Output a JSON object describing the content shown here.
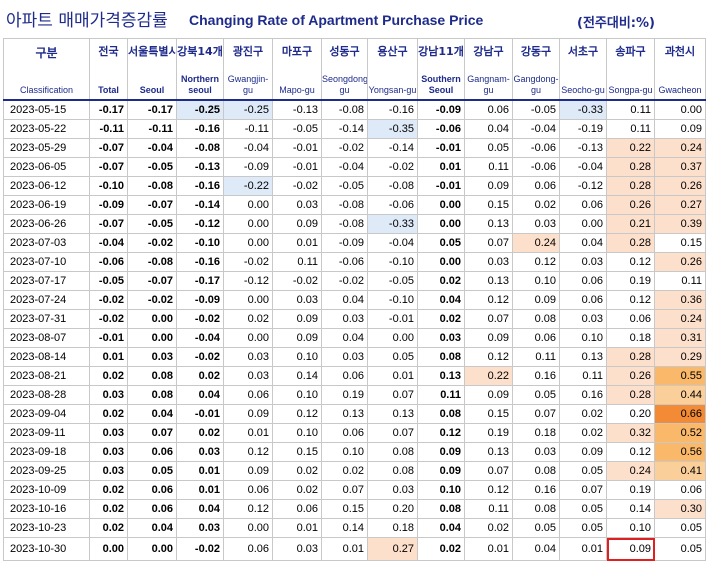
{
  "title_ko": "아파트 매매가격증감률",
  "title_en": "Changing Rate of Apartment Purchase Price",
  "unit": "(전주대비:%)",
  "columns": [
    {
      "ko": "구분",
      "en": "Classification"
    },
    {
      "ko": "전국",
      "en": "Total"
    },
    {
      "ko": "서울특별시",
      "en": "Seoul"
    },
    {
      "ko": "강북14개",
      "en": "Northern seoul"
    },
    {
      "ko": "광진구",
      "en": "Gwangjin-gu"
    },
    {
      "ko": "마포구",
      "en": "Mapo-gu"
    },
    {
      "ko": "성동구",
      "en": "Seongdong-gu"
    },
    {
      "ko": "용산구",
      "en": "Yongsan-gu"
    },
    {
      "ko": "강남11개",
      "en": "Southern Seoul"
    },
    {
      "ko": "강남구",
      "en": "Gangnam-gu"
    },
    {
      "ko": "강동구",
      "en": "Gangdong-gu"
    },
    {
      "ko": "서초구",
      "en": "Seocho-gu"
    },
    {
      "ko": "송파구",
      "en": "Songpa-gu"
    },
    {
      "ko": "과천시",
      "en": "Gwacheon"
    }
  ],
  "rows": [
    [
      "2023-05-15",
      "-0.17",
      "-0.17",
      "-0.25",
      "-0.25",
      "-0.13",
      "-0.08",
      "-0.16",
      "-0.09",
      "0.06",
      "-0.05",
      "-0.33",
      "0.11",
      "0.00"
    ],
    [
      "2023-05-22",
      "-0.11",
      "-0.11",
      "-0.16",
      "-0.11",
      "-0.05",
      "-0.14",
      "-0.35",
      "-0.06",
      "0.04",
      "-0.04",
      "-0.19",
      "0.11",
      "0.09"
    ],
    [
      "2023-05-29",
      "-0.07",
      "-0.04",
      "-0.08",
      "-0.04",
      "-0.01",
      "-0.02",
      "-0.14",
      "-0.01",
      "0.05",
      "-0.06",
      "-0.13",
      "0.22",
      "0.24"
    ],
    [
      "2023-06-05",
      "-0.07",
      "-0.05",
      "-0.13",
      "-0.09",
      "-0.01",
      "-0.04",
      "-0.02",
      "0.01",
      "0.11",
      "-0.06",
      "-0.04",
      "0.28",
      "0.37"
    ],
    [
      "2023-06-12",
      "-0.10",
      "-0.08",
      "-0.16",
      "-0.22",
      "-0.02",
      "-0.05",
      "-0.08",
      "-0.01",
      "0.09",
      "0.06",
      "-0.12",
      "0.28",
      "0.26"
    ],
    [
      "2023-06-19",
      "-0.09",
      "-0.07",
      "-0.14",
      "0.00",
      "0.03",
      "-0.08",
      "-0.06",
      "0.00",
      "0.15",
      "0.02",
      "0.06",
      "0.26",
      "0.27"
    ],
    [
      "2023-06-26",
      "-0.07",
      "-0.05",
      "-0.12",
      "0.00",
      "0.09",
      "-0.08",
      "-0.33",
      "0.00",
      "0.13",
      "0.03",
      "0.00",
      "0.21",
      "0.39"
    ],
    [
      "2023-07-03",
      "-0.04",
      "-0.02",
      "-0.10",
      "0.00",
      "0.01",
      "-0.09",
      "-0.04",
      "0.05",
      "0.07",
      "0.24",
      "0.04",
      "0.28",
      "0.15"
    ],
    [
      "2023-07-10",
      "-0.06",
      "-0.08",
      "-0.16",
      "-0.02",
      "0.11",
      "-0.06",
      "-0.10",
      "0.00",
      "0.03",
      "0.12",
      "0.03",
      "0.12",
      "0.26"
    ],
    [
      "2023-07-17",
      "-0.05",
      "-0.07",
      "-0.17",
      "-0.12",
      "-0.02",
      "-0.02",
      "-0.05",
      "0.02",
      "0.13",
      "0.10",
      "0.06",
      "0.19",
      "0.11"
    ],
    [
      "2023-07-24",
      "-0.02",
      "-0.02",
      "-0.09",
      "0.00",
      "0.03",
      "0.04",
      "-0.10",
      "0.04",
      "0.12",
      "0.09",
      "0.06",
      "0.12",
      "0.36"
    ],
    [
      "2023-07-31",
      "-0.02",
      "0.00",
      "-0.02",
      "0.02",
      "0.09",
      "0.03",
      "-0.01",
      "0.02",
      "0.07",
      "0.08",
      "0.03",
      "0.06",
      "0.24"
    ],
    [
      "2023-08-07",
      "-0.01",
      "0.00",
      "-0.04",
      "0.00",
      "0.09",
      "0.04",
      "0.00",
      "0.03",
      "0.09",
      "0.06",
      "0.10",
      "0.18",
      "0.31"
    ],
    [
      "2023-08-14",
      "0.01",
      "0.03",
      "-0.02",
      "0.03",
      "0.10",
      "0.03",
      "0.05",
      "0.08",
      "0.12",
      "0.11",
      "0.13",
      "0.28",
      "0.29"
    ],
    [
      "2023-08-21",
      "0.02",
      "0.08",
      "0.02",
      "0.03",
      "0.14",
      "0.06",
      "0.01",
      "0.13",
      "0.22",
      "0.16",
      "0.11",
      "0.26",
      "0.55"
    ],
    [
      "2023-08-28",
      "0.03",
      "0.08",
      "0.04",
      "0.06",
      "0.10",
      "0.19",
      "0.07",
      "0.11",
      "0.09",
      "0.05",
      "0.16",
      "0.28",
      "0.44"
    ],
    [
      "2023-09-04",
      "0.02",
      "0.04",
      "-0.01",
      "0.09",
      "0.12",
      "0.13",
      "0.13",
      "0.08",
      "0.15",
      "0.07",
      "0.02",
      "0.20",
      "0.66"
    ],
    [
      "2023-09-11",
      "0.03",
      "0.07",
      "0.02",
      "0.01",
      "0.10",
      "0.06",
      "0.07",
      "0.12",
      "0.19",
      "0.18",
      "0.02",
      "0.32",
      "0.52"
    ],
    [
      "2023-09-18",
      "0.03",
      "0.06",
      "0.03",
      "0.12",
      "0.15",
      "0.10",
      "0.08",
      "0.09",
      "0.13",
      "0.03",
      "0.09",
      "0.12",
      "0.56"
    ],
    [
      "2023-09-25",
      "0.03",
      "0.05",
      "0.01",
      "0.09",
      "0.02",
      "0.02",
      "0.08",
      "0.09",
      "0.07",
      "0.08",
      "0.05",
      "0.24",
      "0.41"
    ],
    [
      "2023-10-09",
      "0.02",
      "0.06",
      "0.01",
      "0.06",
      "0.02",
      "0.07",
      "0.03",
      "0.10",
      "0.12",
      "0.16",
      "0.07",
      "0.19",
      "0.06"
    ],
    [
      "2023-10-16",
      "0.02",
      "0.06",
      "0.04",
      "0.12",
      "0.06",
      "0.15",
      "0.20",
      "0.08",
      "0.11",
      "0.08",
      "0.05",
      "0.14",
      "0.30"
    ],
    [
      "2023-10-23",
      "0.02",
      "0.04",
      "0.03",
      "0.00",
      "0.01",
      "0.14",
      "0.18",
      "0.04",
      "0.02",
      "0.05",
      "0.05",
      "0.10",
      "0.05"
    ],
    [
      "2023-10-30",
      "0.00",
      "0.00",
      "-0.02",
      "0.06",
      "0.03",
      "0.01",
      "0.27",
      "0.02",
      "0.01",
      "0.04",
      "0.01",
      "0.09",
      "0.05"
    ]
  ],
  "cell_shading": {
    "colors": {
      "neg": "#dfeaf8",
      "p1": "#fde0cc",
      "p2": "#fbcf99",
      "p3": "#f9b86a",
      "p4": "#f28a36"
    },
    "cells": [
      [
        0,
        3,
        "neg"
      ],
      [
        0,
        4,
        "neg"
      ],
      [
        0,
        11,
        "neg"
      ],
      [
        1,
        7,
        "neg"
      ],
      [
        2,
        12,
        "p1"
      ],
      [
        2,
        13,
        "p1"
      ],
      [
        3,
        12,
        "p1"
      ],
      [
        3,
        13,
        "p1"
      ],
      [
        4,
        4,
        "neg"
      ],
      [
        4,
        12,
        "p1"
      ],
      [
        4,
        13,
        "p1"
      ],
      [
        5,
        12,
        "p1"
      ],
      [
        5,
        13,
        "p1"
      ],
      [
        6,
        7,
        "neg"
      ],
      [
        6,
        12,
        "p1"
      ],
      [
        6,
        13,
        "p1"
      ],
      [
        7,
        10,
        "p1"
      ],
      [
        7,
        12,
        "p1"
      ],
      [
        8,
        13,
        "p1"
      ],
      [
        10,
        13,
        "p1"
      ],
      [
        11,
        13,
        "p1"
      ],
      [
        12,
        13,
        "p1"
      ],
      [
        13,
        12,
        "p1"
      ],
      [
        13,
        13,
        "p1"
      ],
      [
        14,
        9,
        "p1"
      ],
      [
        14,
        12,
        "p1"
      ],
      [
        14,
        13,
        "p3"
      ],
      [
        15,
        12,
        "p1"
      ],
      [
        15,
        13,
        "p2"
      ],
      [
        16,
        13,
        "p4"
      ],
      [
        17,
        12,
        "p1"
      ],
      [
        17,
        13,
        "p3"
      ],
      [
        18,
        13,
        "p3"
      ],
      [
        19,
        12,
        "p1"
      ],
      [
        19,
        13,
        "p2"
      ],
      [
        21,
        13,
        "p1"
      ],
      [
        23,
        7,
        "p1"
      ]
    ],
    "highlight": [
      23,
      12
    ]
  },
  "bold_columns": [
    1,
    2,
    3,
    8
  ]
}
